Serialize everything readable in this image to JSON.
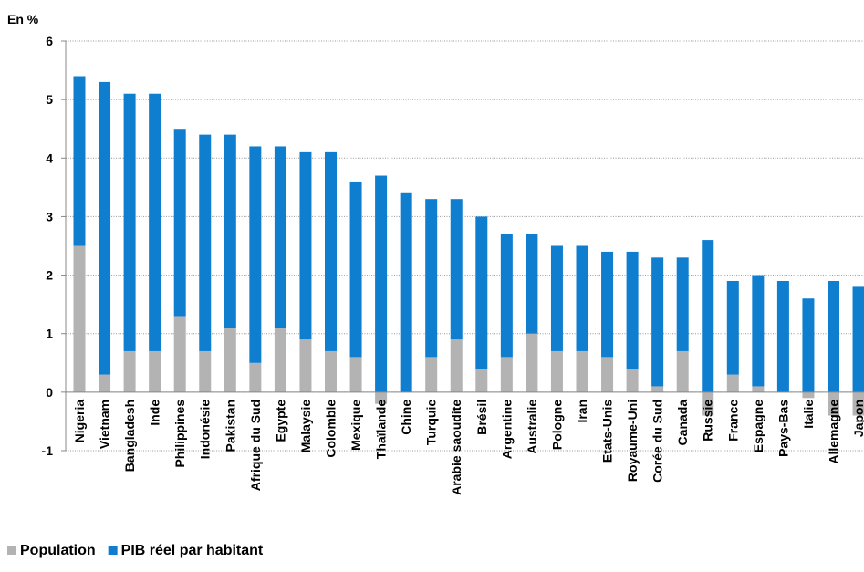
{
  "chart_data": {
    "type": "stacked_bar",
    "y_label": "En %",
    "categories": [
      "Nigeria",
      "Vietnam",
      "Bangladesh",
      "Inde",
      "Philippines",
      "Indonésie",
      "Pakistan",
      "Afrique du Sud",
      "Egypte",
      "Malaysie",
      "Colombie",
      "Mexique",
      "Thaïlande",
      "Chine",
      "Turquie",
      "Arabie saoudite",
      "Brésil",
      "Argentine",
      "Australie",
      "Pologne",
      "Iran",
      "Etats-Unis",
      "Royaume-Uni",
      "Corée du Sud",
      "Canada",
      "Russie",
      "France",
      "Espagne",
      "Pays-Bas",
      "Italie",
      "Allemagne",
      "Japon"
    ],
    "series": [
      {
        "name": "Population",
        "color": "#b3b3b3",
        "values": [
          2.5,
          0.3,
          0.7,
          0.7,
          1.3,
          0.7,
          1.1,
          0.5,
          1.1,
          0.9,
          0.7,
          0.6,
          -0.2,
          0.0,
          0.6,
          0.9,
          0.4,
          0.6,
          1.0,
          0.7,
          0.7,
          0.6,
          0.4,
          0.1,
          0.7,
          -0.4,
          0.3,
          0.1,
          0.0,
          -0.1,
          -0.4,
          -0.4
        ]
      },
      {
        "name": "PIB réel par habitant",
        "color": "#0f7ecf",
        "values": [
          2.9,
          5.0,
          4.4,
          4.4,
          3.2,
          3.7,
          3.3,
          3.7,
          3.1,
          3.2,
          3.4,
          3.0,
          3.7,
          3.4,
          2.7,
          2.4,
          2.6,
          2.1,
          1.7,
          1.8,
          1.8,
          1.8,
          2.0,
          2.2,
          1.6,
          2.6,
          1.6,
          1.9,
          1.9,
          1.6,
          1.9,
          1.8
        ]
      }
    ],
    "ylim": [
      -1,
      6
    ],
    "yticks": [
      -1,
      0,
      1,
      2,
      3,
      4,
      5,
      6
    ],
    "grid": true,
    "legend": "bottom-left"
  }
}
